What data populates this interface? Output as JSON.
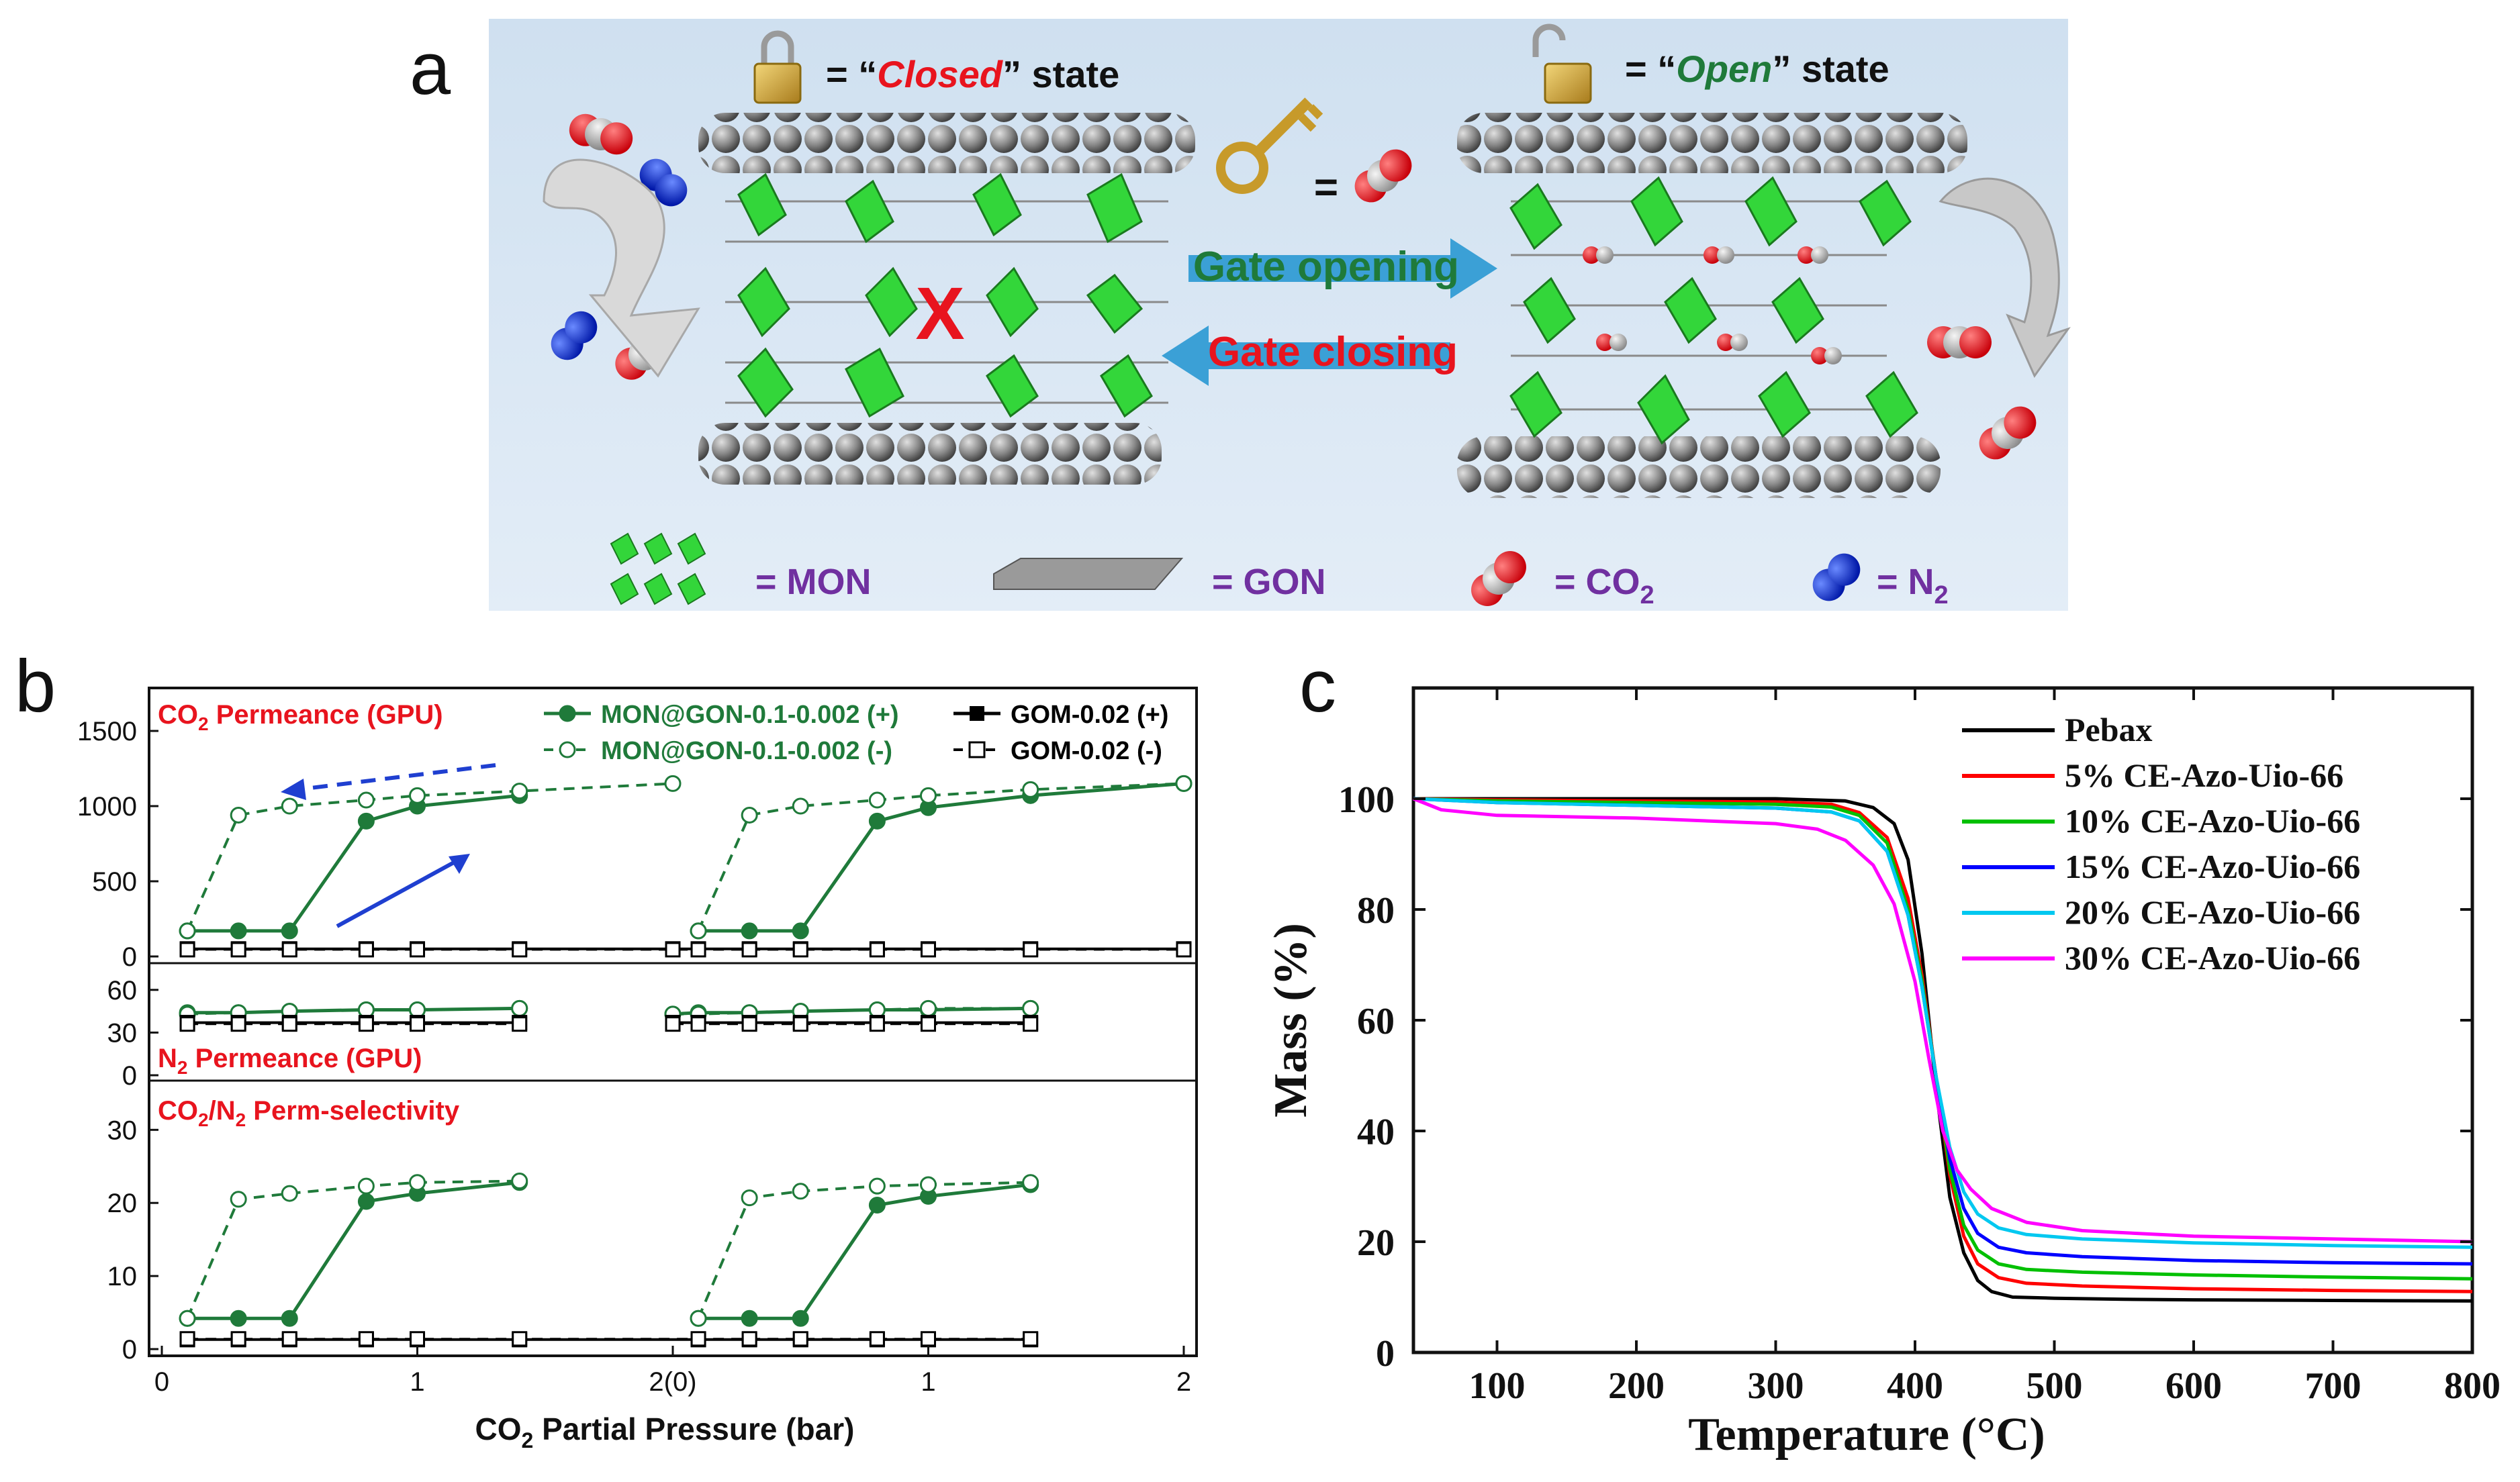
{
  "figure_labels": {
    "a": "a",
    "b": "b",
    "c": "c"
  },
  "panel_a": {
    "closed_prefix": "= “",
    "closed_word": "Closed",
    "closed_suffix": "” state",
    "open_prefix": "= “",
    "open_word": "Open",
    "open_suffix": "” state",
    "key_equals": "=",
    "gate_opening": "Gate opening",
    "gate_closing": "Gate closing",
    "legend_mon": "= MON",
    "legend_gon": "= GON",
    "legend_co2": "= CO",
    "legend_co2_sub": "2",
    "legend_n2": "= N",
    "legend_n2_sub": "2",
    "blocked_mark": "X",
    "colors": {
      "background": "#d4e4f2",
      "green": "#1f7a3a",
      "red": "#e8141e",
      "purple": "#7030a0",
      "mon_green": "#33d63a",
      "arrow_blue": "#3ba0d6"
    }
  },
  "chart_data": [
    {
      "id": "b",
      "type": "line",
      "title": "",
      "xlabel": "CO2 Partial Pressure (bar)",
      "xlabel_parts": {
        "pre": "CO",
        "sub": "2",
        "post": " Partial Pressure (bar)"
      },
      "x_ticks": [
        "0",
        "1",
        "2(0)",
        "1",
        "2"
      ],
      "xlim": [
        -0.05,
        4.05
      ],
      "legend": [
        {
          "label": "MON@GON-0.1-0.002 (+)",
          "color": "#1f7a3a",
          "dash": false,
          "filled": true,
          "marker": "circle"
        },
        {
          "label": "MON@GON-0.1-0.002 (-)",
          "color": "#1f7a3a",
          "dash": true,
          "filled": false,
          "marker": "circle"
        },
        {
          "label": "GOM-0.02 (+)",
          "color": "#000000",
          "dash": false,
          "filled": true,
          "marker": "square"
        },
        {
          "label": "GOM-0.02 (-)",
          "color": "#000000",
          "dash": true,
          "filled": false,
          "marker": "square"
        }
      ],
      "subplots": [
        {
          "name": "co2",
          "label_parts": {
            "pre": "CO",
            "sub": "2",
            "post": " Permeance (GPU)"
          },
          "ylim": [
            0,
            1750
          ],
          "yticks": [
            "0",
            "500",
            "1000",
            "1500"
          ],
          "ytick_values": [
            0,
            500,
            1000,
            1500
          ],
          "series": [
            {
              "name": "MON@GON-0.1-0.002 (+) cycle 1",
              "style": "mon_plus",
              "x": [
                0.1,
                0.3,
                0.5,
                0.8,
                1.0,
                1.4
              ],
              "y": [
                170,
                170,
                170,
                900,
                1000,
                1070
              ]
            },
            {
              "name": "MON@GON-0.1-0.002 (-) cycle 1",
              "style": "mon_minus",
              "x": [
                0.1,
                0.3,
                0.5,
                0.8,
                1.0,
                1.4,
                2.0
              ],
              "y": [
                170,
                940,
                1000,
                1040,
                1070,
                1100,
                1150
              ]
            },
            {
              "name": "MON@GON-0.1-0.002 (+) cycle 2",
              "style": "mon_plus",
              "x": [
                2.1,
                2.3,
                2.5,
                2.8,
                3.0,
                3.4,
                4.0
              ],
              "y": [
                170,
                170,
                170,
                900,
                990,
                1070,
                1150
              ]
            },
            {
              "name": "MON@GON-0.1-0.002 (-) cycle 2",
              "style": "mon_minus",
              "x": [
                2.1,
                2.3,
                2.5,
                2.8,
                3.0,
                3.4,
                4.0
              ],
              "y": [
                170,
                940,
                1000,
                1040,
                1070,
                1110,
                1150
              ]
            },
            {
              "name": "GOM-0.02 (+)",
              "style": "gom_plus",
              "x": [
                0.1,
                0.3,
                0.5,
                0.8,
                1.0,
                1.4,
                2.0,
                2.1,
                2.3,
                2.5,
                2.8,
                3.0,
                3.4,
                4.0
              ],
              "y": [
                50,
                50,
                50,
                50,
                50,
                50,
                50,
                50,
                50,
                50,
                50,
                50,
                50,
                50
              ]
            },
            {
              "name": "GOM-0.02 (-)",
              "style": "gom_minus",
              "x": [
                0.1,
                0.3,
                0.5,
                0.8,
                1.0,
                1.4,
                2.0,
                2.1,
                2.3,
                2.5,
                2.8,
                3.0,
                3.4,
                4.0
              ],
              "y": [
                45,
                45,
                45,
                45,
                45,
                45,
                45,
                45,
                45,
                45,
                45,
                45,
                45,
                45
              ]
            }
          ]
        },
        {
          "name": "n2",
          "label_parts": {
            "pre": "N",
            "sub": "2",
            "post": " Permeance (GPU)"
          },
          "ylim": [
            0,
            75
          ],
          "yticks": [
            "0",
            "30",
            "60"
          ],
          "ytick_values": [
            0,
            30,
            60
          ],
          "series": [
            {
              "name": "MON@GON-0.1-0.002 (+) cycle 1",
              "style": "mon_plus",
              "x": [
                0.1,
                0.3,
                0.5,
                0.8,
                1.0,
                1.4
              ],
              "y": [
                44,
                44,
                45,
                46,
                46,
                47
              ]
            },
            {
              "name": "MON@GON-0.1-0.002 (-) cycle 1",
              "style": "mon_minus",
              "x": [
                0.1,
                0.3,
                0.5,
                0.8,
                1.0,
                1.4
              ],
              "y": [
                43,
                44,
                45,
                46,
                46,
                47
              ]
            },
            {
              "name": "MON@GON-0.1-0.002 (+) cycle 2",
              "style": "mon_plus",
              "x": [
                2.0,
                2.1,
                2.3,
                2.5,
                2.8,
                3.0,
                3.4
              ],
              "y": [
                43,
                44,
                44,
                45,
                46,
                46,
                47
              ]
            },
            {
              "name": "MON@GON-0.1-0.002 (-) cycle 2",
              "style": "mon_minus",
              "x": [
                2.0,
                2.1,
                2.3,
                2.5,
                2.8,
                3.0,
                3.4
              ],
              "y": [
                43,
                43,
                44,
                45,
                46,
                47,
                47
              ]
            },
            {
              "name": "GOM-0.02 (+) cycle 1",
              "style": "gom_plus",
              "x": [
                0.1,
                0.3,
                0.5,
                0.8,
                1.0,
                1.4
              ],
              "y": [
                37,
                37,
                37,
                37,
                37,
                37
              ]
            },
            {
              "name": "GOM-0.02 (-) cycle 1",
              "style": "gom_minus",
              "x": [
                0.1,
                0.3,
                0.5,
                0.8,
                1.0,
                1.4
              ],
              "y": [
                36,
                36,
                36,
                36,
                36,
                36
              ]
            },
            {
              "name": "GOM-0.02 (+) cycle 2",
              "style": "gom_plus",
              "x": [
                2.0,
                2.1,
                2.3,
                2.5,
                2.8,
                3.0,
                3.4
              ],
              "y": [
                37,
                37,
                37,
                37,
                37,
                37,
                37
              ]
            },
            {
              "name": "GOM-0.02 (-) cycle 2",
              "style": "gom_minus",
              "x": [
                2.0,
                2.1,
                2.3,
                2.5,
                2.8,
                3.0,
                3.4
              ],
              "y": [
                36,
                36,
                36,
                36,
                36,
                36,
                36
              ]
            }
          ]
        },
        {
          "name": "sel",
          "label_parts": {
            "pre": "CO",
            "sub": "2",
            "mid": "/N",
            "sub2": "2",
            "post": " Perm-selectivity"
          },
          "ylim": [
            0,
            36
          ],
          "yticks": [
            "0",
            "10",
            "20",
            "30"
          ],
          "ytick_values": [
            0,
            10,
            20,
            30
          ],
          "series": [
            {
              "name": "MON@GON-0.1-0.002 (+) cycle 1",
              "style": "mon_plus",
              "x": [
                0.1,
                0.3,
                0.5,
                0.8,
                1.0,
                1.4
              ],
              "y": [
                4.2,
                4.2,
                4.2,
                20.2,
                21.3,
                22.8
              ]
            },
            {
              "name": "MON@GON-0.1-0.002 (-) cycle 1",
              "style": "mon_minus",
              "x": [
                0.1,
                0.3,
                0.5,
                0.8,
                1.0,
                1.4
              ],
              "y": [
                4.2,
                20.5,
                21.3,
                22.3,
                22.8,
                23.0
              ]
            },
            {
              "name": "MON@GON-0.1-0.002 (+) cycle 2",
              "style": "mon_plus",
              "x": [
                2.1,
                2.3,
                2.5,
                2.8,
                3.0,
                3.4
              ],
              "y": [
                4.2,
                4.2,
                4.2,
                19.7,
                20.9,
                22.5
              ]
            },
            {
              "name": "MON@GON-0.1-0.002 (-) cycle 2",
              "style": "mon_minus",
              "x": [
                2.1,
                2.3,
                2.5,
                2.8,
                3.0,
                3.4
              ],
              "y": [
                4.2,
                20.7,
                21.6,
                22.3,
                22.5,
                22.8
              ]
            },
            {
              "name": "GOM-0.02 (+)",
              "style": "gom_plus",
              "x": [
                0.1,
                0.3,
                0.5,
                0.8,
                1.0,
                1.4,
                2.1,
                2.3,
                2.5,
                2.8,
                3.0,
                3.4
              ],
              "y": [
                1.3,
                1.3,
                1.3,
                1.3,
                1.3,
                1.3,
                1.3,
                1.3,
                1.3,
                1.3,
                1.3,
                1.3
              ]
            },
            {
              "name": "GOM-0.02 (-)",
              "style": "gom_minus",
              "x": [
                0.1,
                0.3,
                0.5,
                0.8,
                1.0,
                1.4,
                2.1,
                2.3,
                2.5,
                2.8,
                3.0,
                3.4
              ],
              "y": [
                1.4,
                1.4,
                1.4,
                1.4,
                1.4,
                1.4,
                1.4,
                1.4,
                1.4,
                1.4,
                1.4,
                1.4
              ]
            }
          ]
        }
      ]
    },
    {
      "id": "c",
      "type": "line",
      "title": "",
      "xlabel": "Temperature (°C)",
      "ylabel": "Mass (%)",
      "xlim": [
        40,
        800
      ],
      "ylim": [
        0,
        120
      ],
      "xticks": [
        100,
        200,
        300,
        400,
        500,
        600,
        700,
        800
      ],
      "yticks": [
        0,
        20,
        40,
        60,
        80,
        100
      ],
      "legend_position": "top-right",
      "series": [
        {
          "name": "Pebax",
          "color": "#000000",
          "x": [
            40,
            100,
            200,
            300,
            350,
            370,
            385,
            395,
            405,
            415,
            425,
            435,
            445,
            455,
            470,
            500,
            550,
            600,
            700,
            800
          ],
          "y": [
            100,
            100,
            100,
            100,
            99.6,
            98.4,
            95.5,
            89,
            72,
            48,
            28,
            18,
            13,
            11,
            10,
            9.8,
            9.6,
            9.5,
            9.4,
            9.3
          ]
        },
        {
          "name": "5% CE-Azo-Uio-66",
          "color": "#ff0000",
          "x": [
            40,
            100,
            200,
            300,
            340,
            360,
            380,
            395,
            405,
            415,
            425,
            435,
            445,
            460,
            480,
            520,
            600,
            700,
            800
          ],
          "y": [
            100,
            99.8,
            99.6,
            99.4,
            99,
            97.5,
            93,
            82,
            68,
            50,
            32,
            21,
            16,
            13.5,
            12.5,
            12,
            11.5,
            11.2,
            11
          ]
        },
        {
          "name": "10% CE-Azo-Uio-66",
          "color": "#00c000",
          "x": [
            40,
            100,
            200,
            300,
            340,
            360,
            380,
            395,
            405,
            415,
            425,
            435,
            445,
            460,
            480,
            520,
            600,
            700,
            800
          ],
          "y": [
            100,
            99.6,
            99.3,
            99,
            98.5,
            97,
            92,
            80,
            67,
            50,
            33,
            23,
            18.5,
            16,
            15,
            14.5,
            14,
            13.6,
            13.3
          ]
        },
        {
          "name": "15% CE-Azo-Uio-66",
          "color": "#0000ff",
          "x": [
            40,
            100,
            200,
            300,
            340,
            360,
            380,
            395,
            405,
            415,
            425,
            435,
            445,
            460,
            480,
            520,
            600,
            700,
            800
          ],
          "y": [
            100,
            99.3,
            98.8,
            98.3,
            97.6,
            96,
            90.5,
            79,
            66,
            50,
            35,
            26,
            21.5,
            19,
            18,
            17.3,
            16.6,
            16.2,
            16
          ]
        },
        {
          "name": "20% CE-Azo-Uio-66",
          "color": "#00c8f0",
          "x": [
            40,
            100,
            200,
            300,
            340,
            360,
            380,
            395,
            405,
            415,
            425,
            435,
            445,
            460,
            480,
            520,
            600,
            700,
            800
          ],
          "y": [
            100,
            99.3,
            98.8,
            98.3,
            97.6,
            96,
            90.5,
            79,
            66,
            50,
            37,
            29,
            25,
            22.5,
            21.3,
            20.5,
            19.8,
            19.3,
            19
          ]
        },
        {
          "name": "30% CE-Azo-Uio-66",
          "color": "#ff00ff",
          "x": [
            40,
            60,
            100,
            200,
            300,
            330,
            350,
            370,
            385,
            400,
            410,
            420,
            430,
            440,
            455,
            480,
            520,
            600,
            700,
            800
          ],
          "y": [
            100,
            98,
            97,
            96.5,
            95.5,
            94.5,
            92.5,
            88,
            81,
            67,
            53,
            40,
            33,
            29.5,
            26,
            23.5,
            22,
            21,
            20.5,
            20
          ]
        }
      ]
    }
  ]
}
